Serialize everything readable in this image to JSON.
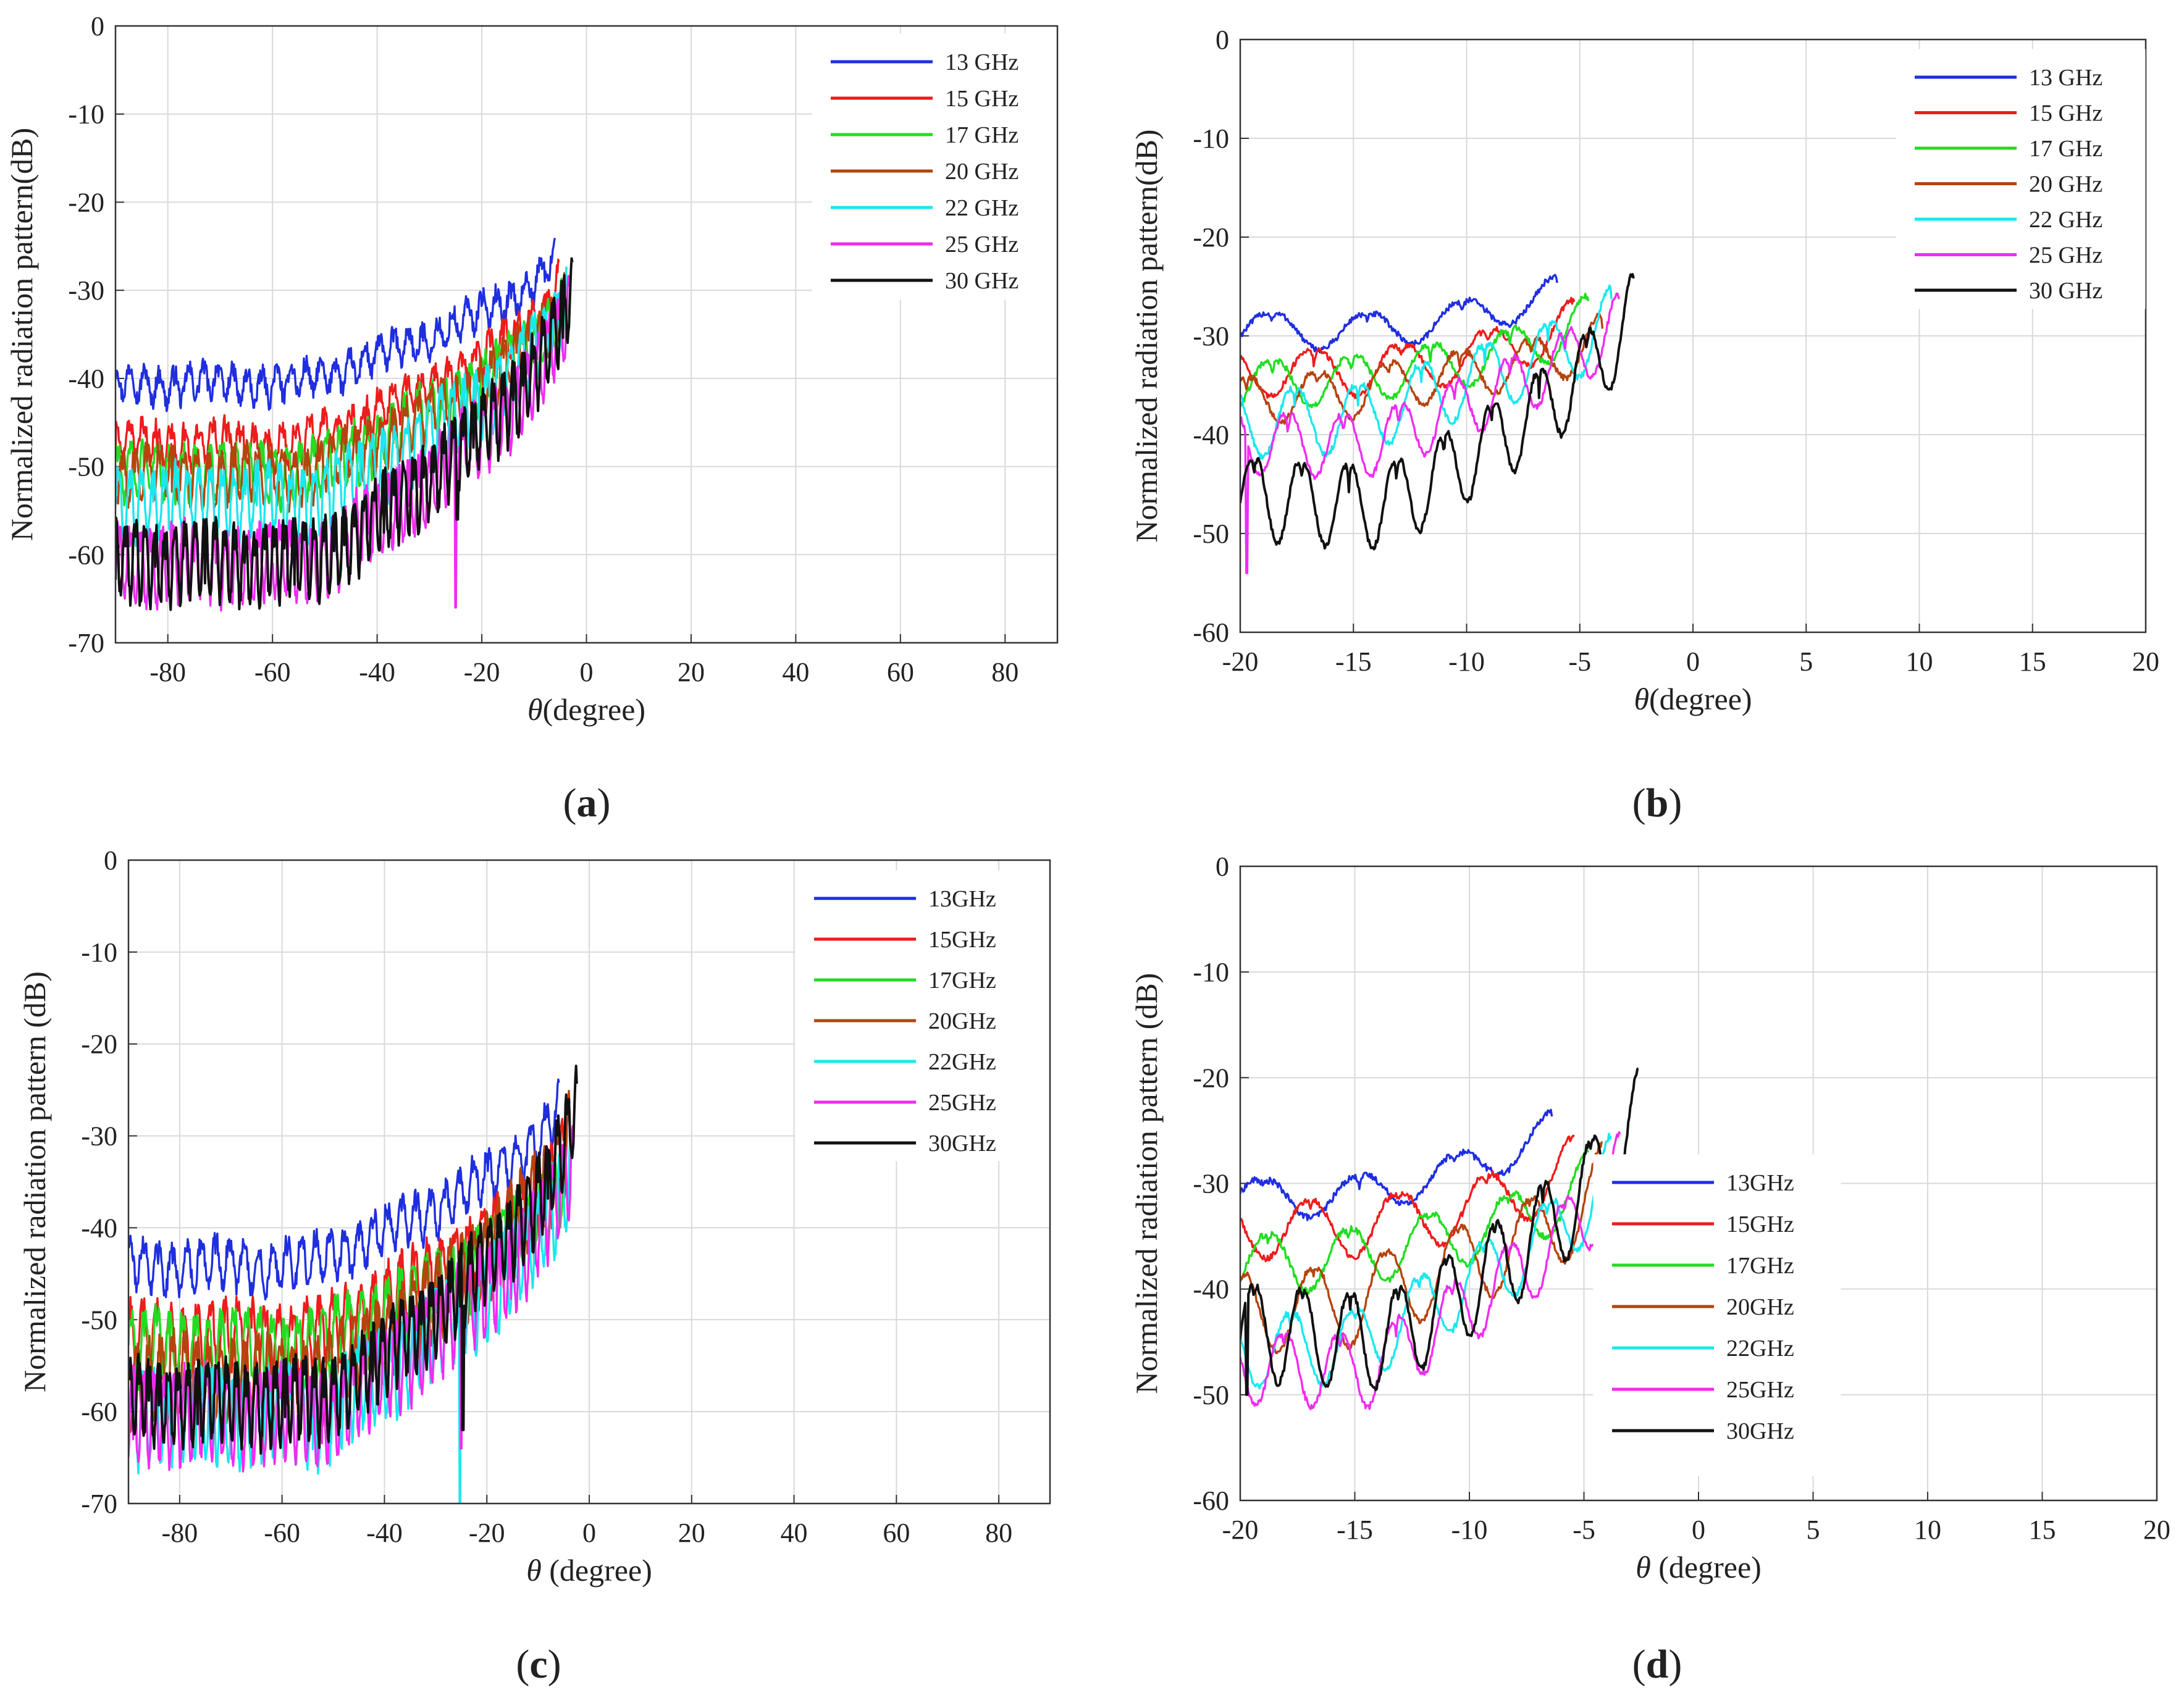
{
  "figure": {
    "panel_labels": [
      "(a)",
      "(b)",
      "(c)",
      "(d)"
    ]
  },
  "colors": {
    "13GHz": "#1f2ee0",
    "15GHz": "#ee1c1c",
    "17GHz": "#22dd22",
    "20GHz": "#b5440e",
    "22GHz": "#19e8ee",
    "25GHz": "#f02cf0",
    "30GHz": "#111111"
  },
  "chart_data": [
    {
      "id": "a",
      "type": "line",
      "panel_label_bold": "a",
      "xlabel_greek": "θ",
      "xlabel": "(degree)",
      "ylabel": "Normalized radiation pattern(dB)",
      "xlim": [
        -90,
        90
      ],
      "ylim": [
        -70,
        0
      ],
      "xticks": [
        -80,
        -60,
        -40,
        -20,
        0,
        20,
        40,
        60,
        80
      ],
      "yticks": [
        0,
        -10,
        -20,
        -30,
        -40,
        -50,
        -60,
        -70
      ],
      "legend_position": "top-right",
      "series": [
        {
          "name": "13 GHz",
          "color_key": "13GHz",
          "beamwidth": 6.0,
          "first_sidelobe": -23,
          "far_level": -38,
          "ripple": 2,
          "nulls": 0
        },
        {
          "name": "15 GHz",
          "color_key": "15GHz",
          "beamwidth": 5.2,
          "first_sidelobe": -24,
          "far_level": -43,
          "ripple": 3,
          "nulls": 2
        },
        {
          "name": "17 GHz",
          "color_key": "17GHz",
          "beamwidth": 4.6,
          "first_sidelobe": -25,
          "far_level": -45,
          "ripple": 4,
          "nulls": 2
        },
        {
          "name": "20 GHz",
          "color_key": "20GHz",
          "beamwidth": 4.0,
          "first_sidelobe": -24,
          "far_level": -45,
          "ripple": 4,
          "nulls": 3
        },
        {
          "name": "22 GHz",
          "color_key": "22GHz",
          "beamwidth": 3.6,
          "first_sidelobe": -23,
          "far_level": -47,
          "ripple": 5,
          "nulls": 3
        },
        {
          "name": "25 GHz",
          "color_key": "25GHz",
          "beamwidth": 3.2,
          "first_sidelobe": -22,
          "far_level": -52,
          "ripple": 6,
          "nulls": 5,
          "deep_null": -66
        },
        {
          "name": "30 GHz",
          "color_key": "30GHz",
          "beamwidth": 2.6,
          "first_sidelobe": -20,
          "far_level": -52,
          "ripple": 6,
          "nulls": 5,
          "deep_null": -56
        }
      ]
    },
    {
      "id": "b",
      "type": "line",
      "panel_label_bold": "b",
      "xlabel_greek": "θ",
      "xlabel": "(degree)",
      "ylabel": "Normalized radiation pattern(dB)",
      "xlim": [
        -20,
        20
      ],
      "ylim": [
        -60,
        0
      ],
      "xticks": [
        -20,
        -15,
        -10,
        -5,
        0,
        5,
        10,
        15,
        20
      ],
      "yticks": [
        0,
        -10,
        -20,
        -30,
        -40,
        -50,
        -60
      ],
      "legend_position": "top-right",
      "series": [
        {
          "name": "13 GHz",
          "color_key": "13GHz",
          "beamwidth": 6.0,
          "first_sidelobe": -23,
          "far_level": -27,
          "ripple": 2,
          "nulls": 0
        },
        {
          "name": "15 GHz",
          "color_key": "15GHz",
          "beamwidth": 5.2,
          "first_sidelobe": -24,
          "far_level": -30,
          "ripple": 3,
          "nulls": 1
        },
        {
          "name": "17 GHz",
          "color_key": "17GHz",
          "beamwidth": 4.6,
          "first_sidelobe": -23,
          "far_level": -31,
          "ripple": 3,
          "nulls": 1
        },
        {
          "name": "20 GHz",
          "color_key": "20GHz",
          "beamwidth": 4.0,
          "first_sidelobe": -25,
          "far_level": -32,
          "ripple": 3,
          "nulls": 1
        },
        {
          "name": "22 GHz",
          "color_key": "22GHz",
          "beamwidth": 3.6,
          "first_sidelobe": -22,
          "far_level": -33,
          "ripple": 4,
          "nulls": 1
        },
        {
          "name": "25 GHz",
          "color_key": "25GHz",
          "beamwidth": 3.2,
          "first_sidelobe": -22,
          "far_level": -35,
          "ripple": 4,
          "nulls": 2,
          "deep_null": -54
        },
        {
          "name": "30 GHz",
          "color_key": "30GHz",
          "beamwidth": 2.6,
          "first_sidelobe": -20,
          "far_level": -40,
          "ripple": 5,
          "nulls": 2
        }
      ]
    },
    {
      "id": "c",
      "type": "line",
      "panel_label_bold": "c",
      "xlabel_greek": "θ",
      "xlabel": " (degree)",
      "ylabel": "Normalized radiation pattern (dB)",
      "xlim": [
        -90,
        90
      ],
      "ylim": [
        -70,
        0
      ],
      "xticks": [
        -80,
        -60,
        -40,
        -20,
        0,
        20,
        40,
        60,
        80
      ],
      "yticks": [
        0,
        -10,
        -20,
        -30,
        -40,
        -50,
        -60,
        -70
      ],
      "legend_position": "top-right",
      "series": [
        {
          "name": "13GHz",
          "color_key": "13GHz",
          "beamwidth": 5.8,
          "first_sidelobe": -22,
          "far_level": -40,
          "ripple": 3,
          "nulls": 1
        },
        {
          "name": "15GHz",
          "color_key": "15GHz",
          "beamwidth": 5.0,
          "first_sidelobe": -24,
          "far_level": -45,
          "ripple": 5,
          "nulls": 3
        },
        {
          "name": "17GHz",
          "color_key": "17GHz",
          "beamwidth": 4.4,
          "first_sidelobe": -26,
          "far_level": -46,
          "ripple": 5,
          "nulls": 3
        },
        {
          "name": "20GHz",
          "color_key": "20GHz",
          "beamwidth": 3.8,
          "first_sidelobe": -20,
          "far_level": -48,
          "ripple": 6,
          "nulls": 4
        },
        {
          "name": "22GHz",
          "color_key": "22GHz",
          "beamwidth": 3.4,
          "first_sidelobe": -22,
          "far_level": -50,
          "ripple": 7,
          "nulls": 6,
          "deep_null": -70
        },
        {
          "name": "25GHz",
          "color_key": "25GHz",
          "beamwidth": 3.0,
          "first_sidelobe": -21,
          "far_level": -50,
          "ripple": 7,
          "nulls": 6,
          "deep_null": -64
        },
        {
          "name": "30GHz",
          "color_key": "30GHz",
          "beamwidth": 2.4,
          "first_sidelobe": -17,
          "far_level": -50,
          "ripple": 6,
          "nulls": 5,
          "deep_null": -62
        }
      ]
    },
    {
      "id": "d",
      "type": "line",
      "panel_label_bold": "d",
      "xlabel_greek": "θ",
      "xlabel": " (degree)",
      "ylabel": "Normalized radiation pattern (dB)",
      "xlim": [
        -20,
        20
      ],
      "ylim": [
        -60,
        0
      ],
      "xticks": [
        -20,
        -15,
        -10,
        -5,
        0,
        5,
        10,
        15,
        20
      ],
      "yticks": [
        0,
        -10,
        -20,
        -30,
        -40,
        -50,
        -60
      ],
      "legend_position": "bottom-center",
      "series": [
        {
          "name": "13GHz",
          "color_key": "13GHz",
          "beamwidth": 6.4,
          "first_sidelobe": -22,
          "far_level": -29,
          "ripple": 2,
          "nulls": 0
        },
        {
          "name": "15GHz",
          "color_key": "15GHz",
          "beamwidth": 5.4,
          "first_sidelobe": -24,
          "far_level": -31,
          "ripple": 3,
          "nulls": 0
        },
        {
          "name": "17GHz",
          "color_key": "17GHz",
          "beamwidth": 4.8,
          "first_sidelobe": -25,
          "far_level": -34,
          "ripple": 3,
          "nulls": 0
        },
        {
          "name": "20GHz",
          "color_key": "20GHz",
          "beamwidth": 4.2,
          "first_sidelobe": -24,
          "far_level": -37,
          "ripple": 4,
          "nulls": 0
        },
        {
          "name": "22GHz",
          "color_key": "22GHz",
          "beamwidth": 3.8,
          "first_sidelobe": -22,
          "far_level": -40,
          "ripple": 4,
          "nulls": 1
        },
        {
          "name": "25GHz",
          "color_key": "25GHz",
          "beamwidth": 3.4,
          "first_sidelobe": -22,
          "far_level": -42,
          "ripple": 4,
          "nulls": 1
        },
        {
          "name": "30GHz",
          "color_key": "30GHz",
          "beamwidth": 2.6,
          "first_sidelobe": -16.5,
          "far_level": -38,
          "ripple": 5,
          "nulls": 1,
          "deep_null": -50
        }
      ]
    }
  ]
}
